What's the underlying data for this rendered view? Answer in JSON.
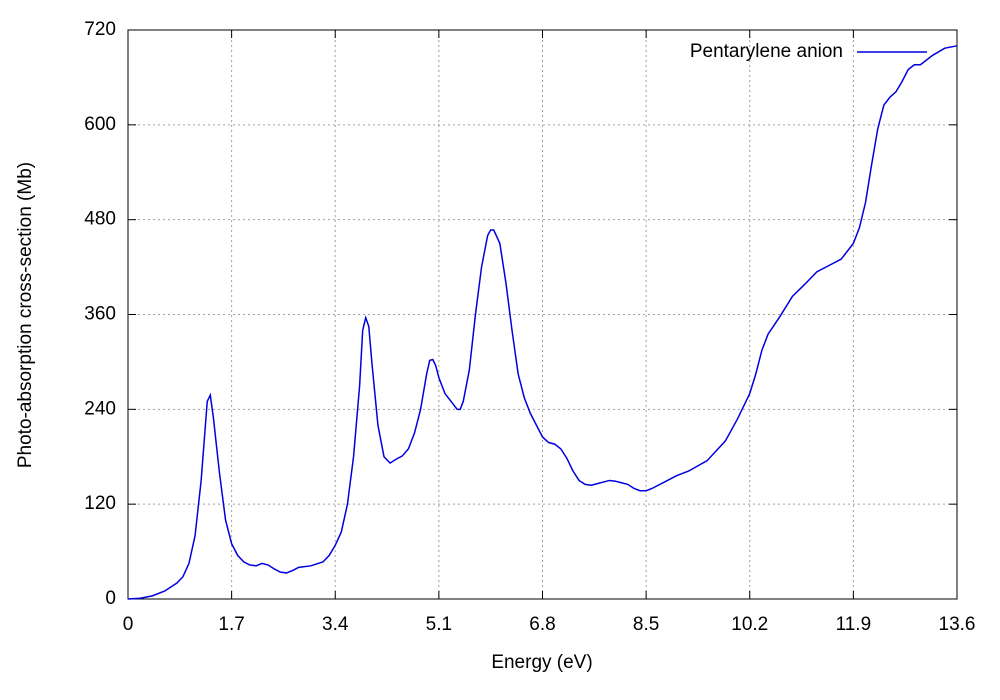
{
  "chart_data": {
    "type": "line",
    "x_label": "Energy (eV)",
    "y_label": "Photo-absorption cross-section (Mb)",
    "xlim": [
      0,
      13.6
    ],
    "xticks": [
      0,
      1.7,
      3.4,
      5.1,
      6.8,
      8.5,
      10.2,
      11.9,
      13.6
    ],
    "ylim": [
      0,
      720
    ],
    "yticks": [
      0,
      120,
      240,
      360,
      480,
      600,
      720
    ],
    "grid": true,
    "legend": "upper right",
    "x": [
      0,
      0.2,
      0.4,
      0.6,
      0.8,
      0.9,
      1.0,
      1.1,
      1.2,
      1.3,
      1.35,
      1.4,
      1.5,
      1.6,
      1.7,
      1.8,
      1.9,
      2.0,
      2.1,
      2.2,
      2.3,
      2.4,
      2.5,
      2.6,
      2.7,
      2.8,
      3.0,
      3.2,
      3.3,
      3.4,
      3.5,
      3.6,
      3.7,
      3.8,
      3.85,
      3.9,
      3.95,
      4.0,
      4.1,
      4.2,
      4.3,
      4.4,
      4.5,
      4.6,
      4.7,
      4.8,
      4.9,
      4.95,
      5.0,
      5.05,
      5.1,
      5.2,
      5.3,
      5.4,
      5.45,
      5.5,
      5.6,
      5.7,
      5.8,
      5.9,
      5.95,
      6.0,
      6.1,
      6.2,
      6.3,
      6.4,
      6.5,
      6.6,
      6.7,
      6.8,
      6.9,
      7.0,
      7.1,
      7.2,
      7.3,
      7.4,
      7.5,
      7.6,
      7.7,
      7.9,
      8.0,
      8.2,
      8.3,
      8.4,
      8.5,
      8.6,
      8.8,
      9.0,
      9.2,
      9.5,
      9.8,
      10.0,
      10.2,
      10.3,
      10.4,
      10.5,
      10.7,
      10.9,
      11.1,
      11.3,
      11.5,
      11.7,
      11.9,
      12.0,
      12.1,
      12.2,
      12.3,
      12.4,
      12.5,
      12.6,
      12.7,
      12.8,
      12.9,
      13.0,
      13.2,
      13.4,
      13.6
    ],
    "series": [
      {
        "name": "Pentarylene anion",
        "color": "#0000e0",
        "values": [
          0,
          1,
          4,
          10,
          20,
          28,
          45,
          80,
          150,
          250,
          258,
          230,
          160,
          100,
          70,
          55,
          47,
          43,
          42,
          45,
          43,
          38,
          34,
          33,
          36,
          40,
          42,
          47,
          55,
          68,
          85,
          120,
          180,
          270,
          340,
          356,
          345,
          300,
          220,
          180,
          172,
          177,
          181,
          190,
          210,
          240,
          285,
          302,
          303,
          295,
          280,
          260,
          250,
          240,
          240,
          250,
          290,
          360,
          420,
          460,
          467,
          467,
          450,
          400,
          340,
          285,
          255,
          235,
          220,
          205,
          198,
          196,
          190,
          178,
          162,
          150,
          145,
          144,
          146,
          150,
          149,
          145,
          140,
          137,
          137,
          140,
          148,
          156,
          162,
          175,
          200,
          228,
          260,
          285,
          315,
          335,
          358,
          383,
          398,
          414,
          422,
          430,
          450,
          470,
          502,
          550,
          595,
          625,
          635,
          642,
          655,
          670,
          676,
          676,
          688,
          697,
          700
        ]
      }
    ]
  }
}
